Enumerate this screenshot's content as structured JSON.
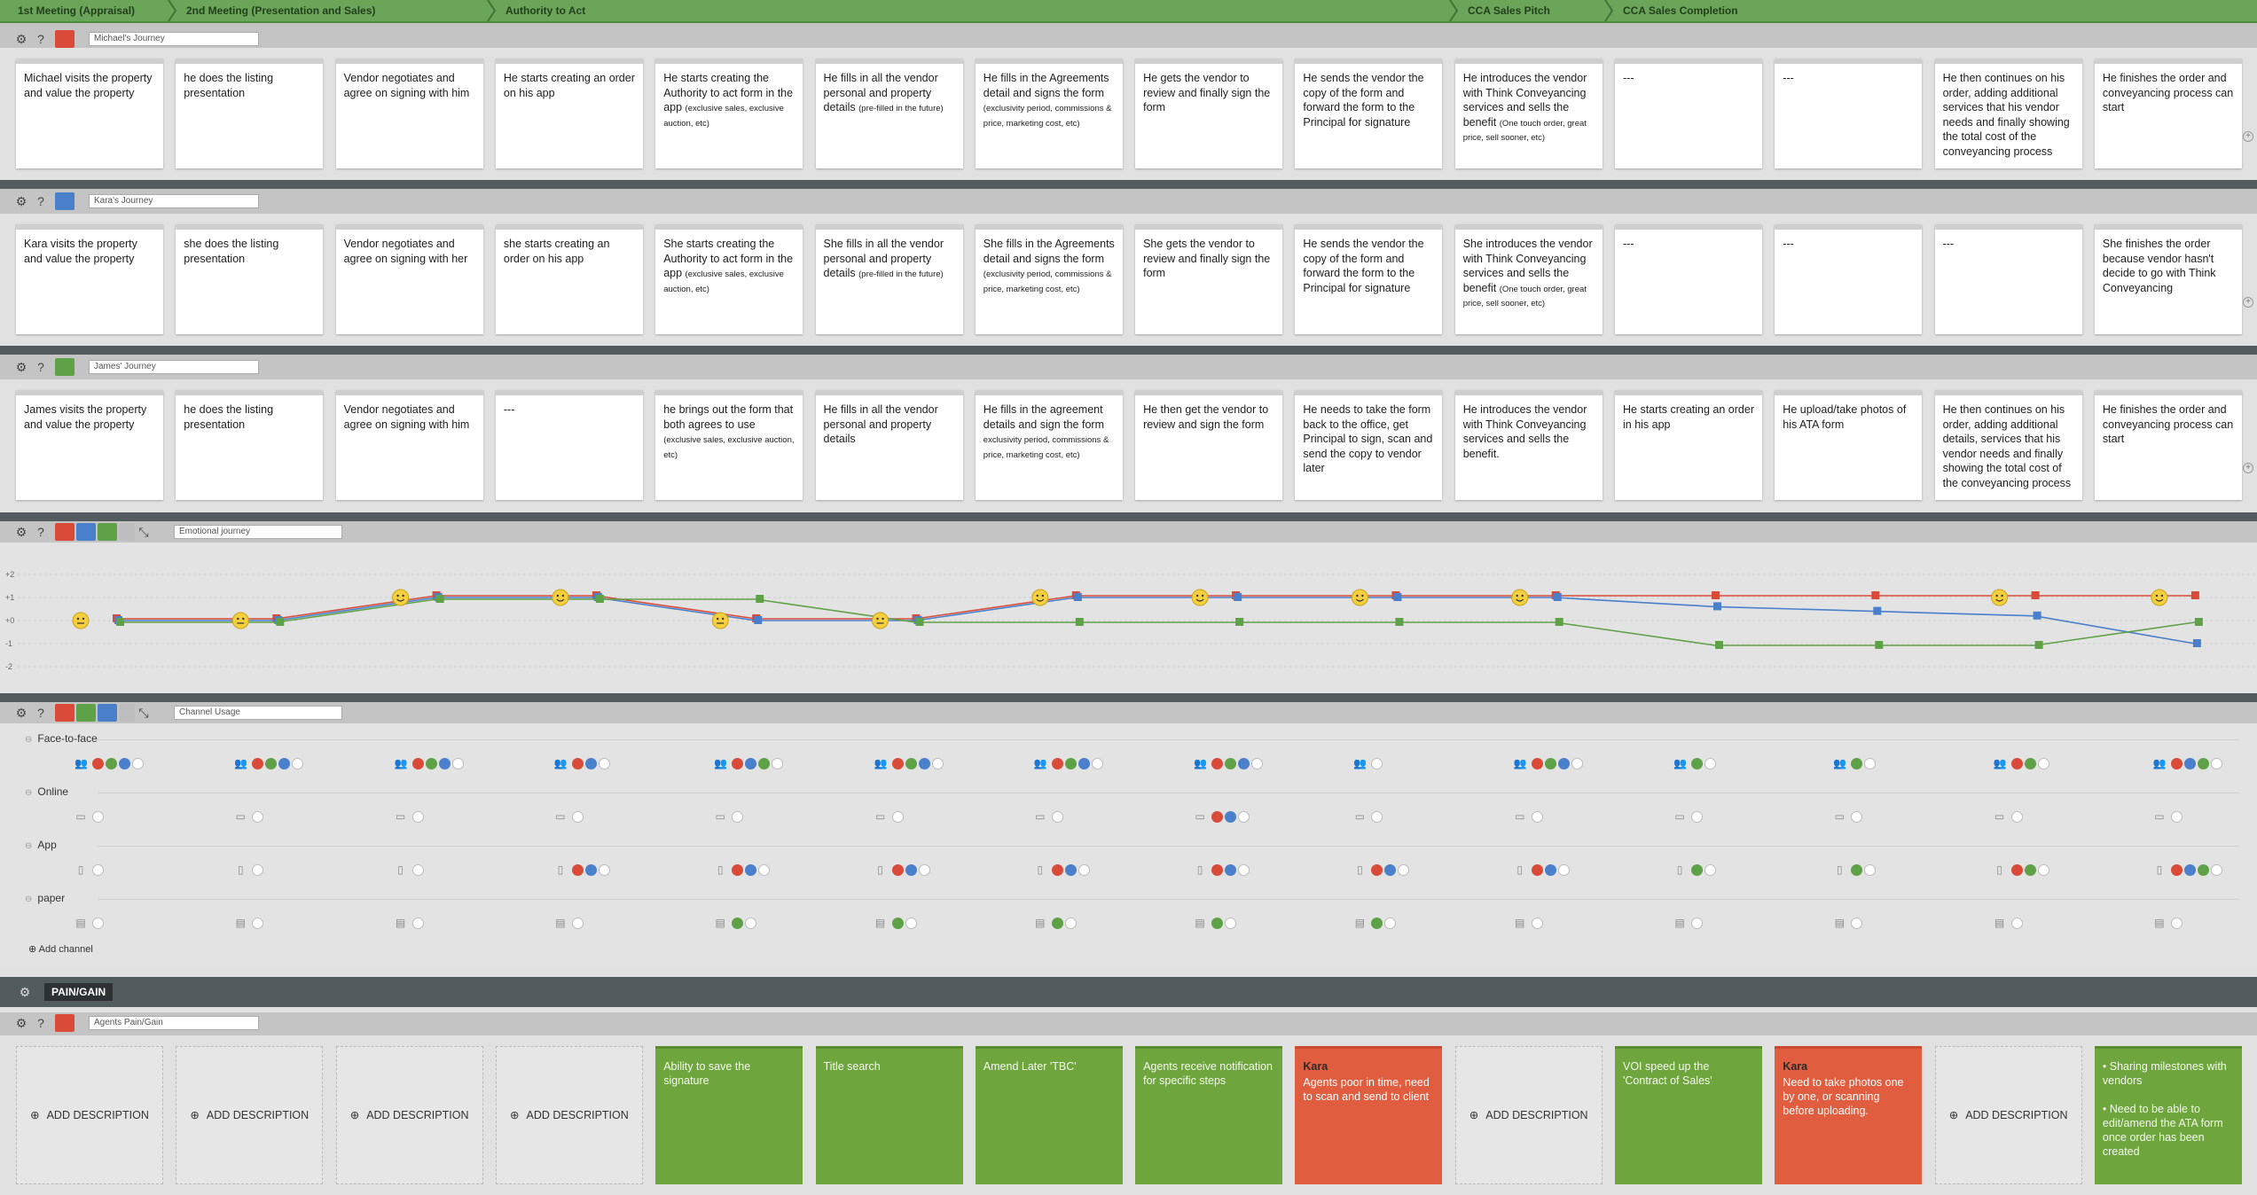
{
  "stages": [
    {
      "label": "1st Meeting (Appraisal)"
    },
    {
      "label": "2nd Meeting (Presentation and Sales)"
    },
    {
      "label": "Authority to Act"
    },
    {
      "label": "CCA Sales Pitch"
    },
    {
      "label": "CCA Sales Completion"
    }
  ],
  "lanes": [
    {
      "name": "Michael's Journey",
      "avatar_color": "#d94b38",
      "cards": [
        {
          "text": "Michael visits the property and value the property",
          "small": ""
        },
        {
          "text": "he does the listing presentation",
          "small": ""
        },
        {
          "text": "Vendor negotiates and agree on signing with him",
          "small": ""
        },
        {
          "text": "He starts creating an order on his app",
          "small": ""
        },
        {
          "text": "He starts creating the Authority to act form in the app",
          "small": "(exclusive sales, exclusive auction, etc)"
        },
        {
          "text": "He fills in all the vendor personal and property details",
          "small": "(pre-filled in the future)"
        },
        {
          "text": "He fills in the Agreements detail and signs the form",
          "small": "(exclusivity period, commissions & price, marketing cost, etc)"
        },
        {
          "text": "He gets the vendor to review and finally sign the form",
          "small": ""
        },
        {
          "text": "He sends the vendor the copy of the form and forward the form to the Principal for signature",
          "small": ""
        },
        {
          "text": "He introduces the vendor with Think Conveyancing services and sells the benefit",
          "small": "(One touch order, great price, sell sooner, etc)"
        },
        {
          "text": "---",
          "small": ""
        },
        {
          "text": "---",
          "small": ""
        },
        {
          "text": "He then continues on his order, adding additional services that his vendor needs and finally showing the total cost of the conveyancing process",
          "small": ""
        },
        {
          "text": "He finishes the order and conveyancing process can start",
          "small": ""
        }
      ]
    },
    {
      "name": "Kara's Journey",
      "avatar_color": "#4a7fcb",
      "cards": [
        {
          "text": "Kara visits the property and value the property",
          "small": ""
        },
        {
          "text": "she does the listing presentation",
          "small": ""
        },
        {
          "text": "Vendor negotiates and agree on signing with her",
          "small": ""
        },
        {
          "text": "she starts creating an order on his app",
          "small": ""
        },
        {
          "text": "She starts creating the Authority to act form in the app",
          "small": "(exclusive sales, exclusive auction, etc)"
        },
        {
          "text": "She fills in all the vendor personal and property details",
          "small": "(pre-filled in the future)"
        },
        {
          "text": "She fills in the Agreements detail and signs the form",
          "small": "(exclusivity period, commissions & price, marketing cost, etc)"
        },
        {
          "text": "She gets the vendor to review and finally sign the form",
          "small": ""
        },
        {
          "text": "He sends the vendor the copy of the form and forward the form to the Principal for signature",
          "small": ""
        },
        {
          "text": "She introduces the vendor with Think Conveyancing services and sells the benefit",
          "small": "(One touch order, great price, sell sooner, etc)"
        },
        {
          "text": "---",
          "small": ""
        },
        {
          "text": "---",
          "small": ""
        },
        {
          "text": "---",
          "small": ""
        },
        {
          "text": "She finishes the order because vendor hasn't decide to go with Think Conveyancing",
          "small": ""
        }
      ]
    },
    {
      "name": "James' Journey",
      "avatar_color": "#5fa147",
      "cards": [
        {
          "text": "James visits the property and value the property",
          "small": ""
        },
        {
          "text": "he does the listing presentation",
          "small": ""
        },
        {
          "text": "Vendor negotiates and agree on signing with him",
          "small": ""
        },
        {
          "text": "---",
          "small": ""
        },
        {
          "text": "he brings out the form that both agrees to use",
          "small": "(exclusive sales, exclusive auction, etc)"
        },
        {
          "text": "He fills in all the vendor personal and property details",
          "small": ""
        },
        {
          "text": "He fills in the agreement details and sign the form",
          "small": "exclusivity period, commissions & price, marketing cost, etc)"
        },
        {
          "text": "He then get the vendor to review and sign the form",
          "small": ""
        },
        {
          "text": "He needs to take the form back to the office, get Principal to sign, scan and send the copy to vendor later",
          "small": ""
        },
        {
          "text": "He introduces the vendor with Think Conveyancing services and sells the benefit.",
          "small": ""
        },
        {
          "text": "He starts creating an order in his app",
          "small": ""
        },
        {
          "text": "He upload/take photos of his ATA form",
          "small": ""
        },
        {
          "text": "He then continues on his order, adding additional details, services that his vendor needs and finally showing the total cost of the conveyancing process",
          "small": ""
        },
        {
          "text": "He finishes the order and conveyancing process can start",
          "small": ""
        }
      ]
    }
  ],
  "emotional": {
    "name": "Emotional journey",
    "axis_labels": [
      "+2",
      "+1",
      "+0",
      "-1",
      "-2"
    ],
    "series": [
      {
        "color": "#d94b38",
        "values": [
          0,
          0,
          1,
          1,
          0,
          0,
          1,
          1,
          1,
          1,
          1,
          1,
          1,
          1
        ]
      },
      {
        "color": "#4a7fcb",
        "values": [
          0,
          0,
          1,
          1,
          0,
          0,
          1,
          1,
          1,
          1,
          0.6,
          0.4,
          0.2,
          -1
        ]
      },
      {
        "color": "#5fa147",
        "values": [
          0,
          0,
          1,
          1,
          1,
          0,
          0,
          0,
          0,
          0,
          -1,
          -1,
          -1,
          0
        ]
      }
    ],
    "face_values": [
      0,
      0,
      1,
      1,
      0,
      0,
      1,
      1,
      1,
      1,
      null,
      null,
      1,
      1
    ]
  },
  "channels": {
    "name": "Channel Usage",
    "add_label": "Add channel",
    "rows": [
      {
        "label": "Face-to-face",
        "icon": "person",
        "cells": [
          [
            "red",
            "green",
            "blue"
          ],
          [
            "red",
            "green",
            "blue"
          ],
          [
            "red",
            "green",
            "blue"
          ],
          [
            "red",
            "blue"
          ],
          [
            "red",
            "blue",
            "green"
          ],
          [
            "red",
            "green",
            "blue"
          ],
          [
            "red",
            "green",
            "blue"
          ],
          [
            "red",
            "green",
            "blue"
          ],
          [],
          [
            "red",
            "green",
            "blue"
          ],
          [
            "green"
          ],
          [
            "green"
          ],
          [
            "red",
            "green"
          ],
          [
            "red",
            "blue",
            "green"
          ]
        ]
      },
      {
        "label": "Online",
        "icon": "monitor",
        "cells": [
          [],
          [],
          [],
          [],
          [],
          [],
          [],
          [
            "red",
            "blue"
          ],
          [],
          [],
          [],
          [],
          [],
          []
        ]
      },
      {
        "label": "App",
        "icon": "phone",
        "cells": [
          [],
          [],
          [],
          [
            "red",
            "blue"
          ],
          [
            "red",
            "blue"
          ],
          [
            "red",
            "blue"
          ],
          [
            "red",
            "blue"
          ],
          [
            "red",
            "blue"
          ],
          [
            "red",
            "blue"
          ],
          [
            "red",
            "blue"
          ],
          [
            "green"
          ],
          [
            "green"
          ],
          [
            "red",
            "green"
          ],
          [
            "red",
            "blue",
            "green"
          ]
        ]
      },
      {
        "label": "paper",
        "icon": "doc",
        "cells": [
          [],
          [],
          [],
          [],
          [
            "green"
          ],
          [
            "green"
          ],
          [
            "green"
          ],
          [
            "green"
          ],
          [
            "green"
          ],
          [],
          [],
          [],
          [],
          []
        ]
      }
    ]
  },
  "paingain": {
    "section_label": "PAIN/GAIN",
    "lane_name": "Agents Pain/Gain",
    "add_label": "ADD DESCRIPTION",
    "cards": [
      {
        "type": "empty",
        "title": "",
        "text": ""
      },
      {
        "type": "empty",
        "title": "",
        "text": ""
      },
      {
        "type": "empty",
        "title": "",
        "text": ""
      },
      {
        "type": "empty",
        "title": "",
        "text": ""
      },
      {
        "type": "gain",
        "title": "",
        "text": "Ability to save the signature"
      },
      {
        "type": "gain",
        "title": "",
        "text": "Title search"
      },
      {
        "type": "gain",
        "title": "",
        "text": "Amend Later 'TBC'"
      },
      {
        "type": "gain",
        "title": "",
        "text": "Agents receive notification for specific steps"
      },
      {
        "type": "pain",
        "title": "Kara",
        "text": "Agents poor in time, need to scan and send to client"
      },
      {
        "type": "empty",
        "title": "",
        "text": ""
      },
      {
        "type": "gain",
        "title": "",
        "text": "VOI speed up the 'Contract of Sales'"
      },
      {
        "type": "pain",
        "title": "Kara",
        "text": "Need to take photos one by one, or scanning before uploading."
      },
      {
        "type": "empty",
        "title": "",
        "text": ""
      },
      {
        "type": "gain",
        "title": "",
        "text": "• Sharing milestones with vendors\n\n• Need to be able to edit/amend the ATA form once order has been created"
      }
    ]
  }
}
